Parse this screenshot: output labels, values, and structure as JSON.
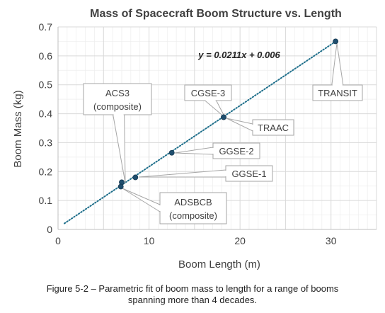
{
  "chart_data": {
    "type": "scatter",
    "title": "Mass of Spacecraft Boom Structure vs. Length",
    "xlabel": "Boom Length (m)",
    "ylabel": "Boom Mass (kg)",
    "xlim": [
      0,
      35
    ],
    "ylim": [
      0,
      0.7
    ],
    "x_ticks": [
      "0",
      "10",
      "20",
      "30"
    ],
    "y_ticks": [
      "0",
      "0.1",
      "0.2",
      "0.3",
      "0.4",
      "0.5",
      "0.6",
      "0.7"
    ],
    "grid": true,
    "series": [
      {
        "points": [
          {
            "label": "ACS3",
            "sublabel": "(composite)",
            "x": 7.0,
            "y": 0.163
          },
          {
            "label": "ADSBCB",
            "sublabel": "(composite)",
            "x": 6.9,
            "y": 0.148
          },
          {
            "label": "GGSE-1",
            "sublabel": "",
            "x": 8.5,
            "y": 0.18
          },
          {
            "label": "GGSE-2",
            "sublabel": "",
            "x": 12.5,
            "y": 0.265
          },
          {
            "label": "CGSE-3",
            "sublabel": "",
            "x": 18.2,
            "y": 0.388
          },
          {
            "label": "TRAAC",
            "sublabel": "",
            "x": 18.2,
            "y": 0.388
          },
          {
            "label": "TRANSIT",
            "sublabel": "",
            "x": 30.5,
            "y": 0.65
          }
        ]
      }
    ],
    "trendline": {
      "equation": "y = 0.0211x + 0.006",
      "slope": 0.0211,
      "intercept": 0.006,
      "x_range": [
        0.7,
        30.5
      ]
    },
    "colors": {
      "marker": "#1f4e6e",
      "trendline": "#1f6f8b",
      "grid": "#d9d9d9"
    }
  },
  "caption": {
    "line1": "Figure 5-2 – Parametric fit of boom mass to length for a range of booms",
    "line2": "spanning more than 4 decades."
  }
}
